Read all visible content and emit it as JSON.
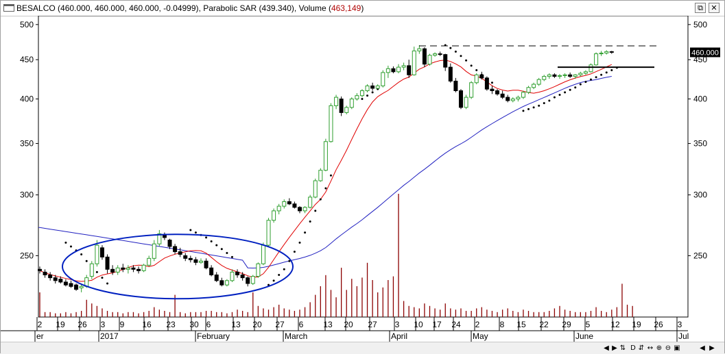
{
  "window": {
    "title_main": "BESALCO (460.000, 460.000, 460.000, -0.04999), Parabolic SAR (439.340), Volume (",
    "title_volume_value": "463,149",
    "title_close": ")",
    "restore_icon": "restore-window-icon",
    "close_icon": "close-window-icon"
  },
  "colors": {
    "up_candle": "#2e9e2e",
    "down_candle": "#000000",
    "sar": "#000000",
    "ma_short": "#e00000",
    "ma_long": "#2020c0",
    "volume": "#8b0000",
    "annotation": "#0020c0",
    "price_tag_bg": "#000000",
    "price_tag_text": "#ffffff"
  },
  "chart_data": {
    "type": "candlestick",
    "y_scale": "log",
    "ylim": [
      208,
      505
    ],
    "y_ticks": [
      250,
      300,
      350,
      400,
      450,
      500
    ],
    "last_price_label": "460.000",
    "x_day_labels": [
      "2",
      "19",
      "26",
      "3",
      "9",
      "16",
      "23",
      "30",
      "6",
      "13",
      "20",
      "27",
      "6",
      "13",
      "20",
      "27",
      "3",
      "10",
      "17",
      "24",
      "2",
      "8",
      "15",
      "22",
      "29",
      "5",
      "12",
      "19",
      "26",
      "3"
    ],
    "x_month_labels": [
      "er",
      "2017",
      "February",
      "March",
      "April",
      "May",
      "June",
      "Jul"
    ],
    "ohlc": [
      [
        240,
        242,
        237,
        239
      ],
      [
        238,
        240,
        234,
        236
      ],
      [
        236,
        238,
        232,
        234
      ],
      [
        234,
        236,
        230,
        232
      ],
      [
        233,
        235,
        230,
        231
      ],
      [
        231,
        233,
        228,
        229
      ],
      [
        230,
        232,
        227,
        228
      ],
      [
        229,
        230,
        225,
        226
      ],
      [
        227,
        230,
        224,
        228
      ],
      [
        228,
        236,
        227,
        234
      ],
      [
        235,
        246,
        233,
        244
      ],
      [
        244,
        262,
        242,
        258
      ],
      [
        256,
        258,
        247,
        249
      ],
      [
        249,
        251,
        237,
        240
      ],
      [
        240,
        243,
        236,
        238
      ],
      [
        238,
        243,
        236,
        241
      ],
      [
        241,
        244,
        238,
        240
      ],
      [
        240,
        243,
        237,
        241
      ],
      [
        241,
        243,
        238,
        240
      ],
      [
        240,
        242,
        237,
        239
      ],
      [
        239,
        244,
        238,
        243
      ],
      [
        243,
        250,
        242,
        248
      ],
      [
        248,
        262,
        246,
        259
      ],
      [
        259,
        270,
        257,
        267
      ],
      [
        266,
        268,
        262,
        264
      ],
      [
        262,
        263,
        255,
        257
      ],
      [
        257,
        259,
        251,
        253
      ],
      [
        253,
        256,
        249,
        251
      ],
      [
        250,
        252,
        246,
        248
      ],
      [
        248,
        250,
        245,
        247
      ],
      [
        247,
        249,
        243,
        245
      ],
      [
        245,
        248,
        244,
        246
      ],
      [
        246,
        248,
        240,
        241
      ],
      [
        241,
        243,
        235,
        236
      ],
      [
        236,
        238,
        231,
        232
      ],
      [
        232,
        234,
        228,
        229
      ],
      [
        229,
        233,
        228,
        232
      ],
      [
        232,
        240,
        231,
        238
      ],
      [
        238,
        240,
        234,
        236
      ],
      [
        236,
        238,
        232,
        234
      ],
      [
        234,
        235,
        228,
        230
      ],
      [
        230,
        236,
        229,
        235
      ],
      [
        235,
        245,
        234,
        244
      ],
      [
        244,
        260,
        243,
        258
      ],
      [
        258,
        280,
        257,
        278
      ],
      [
        278,
        288,
        276,
        286
      ],
      [
        286,
        292,
        283,
        290
      ],
      [
        290,
        296,
        288,
        294
      ],
      [
        294,
        297,
        291,
        292
      ],
      [
        292,
        294,
        288,
        289
      ],
      [
        289,
        290,
        284,
        286
      ],
      [
        286,
        290,
        284,
        289
      ],
      [
        289,
        300,
        288,
        298
      ],
      [
        298,
        315,
        297,
        313
      ],
      [
        313,
        325,
        312,
        323
      ],
      [
        323,
        355,
        322,
        352
      ],
      [
        352,
        395,
        351,
        392
      ],
      [
        392,
        405,
        388,
        402
      ],
      [
        400,
        403,
        380,
        384
      ],
      [
        384,
        392,
        382,
        390
      ],
      [
        390,
        402,
        388,
        400
      ],
      [
        400,
        407,
        398,
        404
      ],
      [
        404,
        412,
        402,
        410
      ],
      [
        410,
        418,
        408,
        416
      ],
      [
        416,
        420,
        410,
        413
      ],
      [
        413,
        418,
        412,
        416
      ],
      [
        416,
        436,
        414,
        433
      ],
      [
        433,
        442,
        426,
        438
      ],
      [
        438,
        441,
        432,
        434
      ],
      [
        434,
        444,
        432,
        440
      ],
      [
        440,
        446,
        436,
        442
      ],
      [
        442,
        450,
        426,
        430
      ],
      [
        430,
        468,
        429,
        462
      ],
      [
        462,
        470,
        458,
        465
      ],
      [
        465,
        467,
        440,
        444
      ],
      [
        444,
        458,
        442,
        456
      ],
      [
        456,
        460,
        454,
        458
      ],
      [
        458,
        461,
        455,
        457
      ],
      [
        457,
        458,
        435,
        440
      ],
      [
        440,
        445,
        420,
        422
      ],
      [
        422,
        426,
        408,
        410
      ],
      [
        410,
        412,
        388,
        390
      ],
      [
        390,
        405,
        388,
        402
      ],
      [
        402,
        422,
        400,
        420
      ],
      [
        420,
        432,
        418,
        430
      ],
      [
        430,
        434,
        424,
        426
      ],
      [
        426,
        428,
        410,
        412
      ],
      [
        412,
        416,
        406,
        410
      ],
      [
        410,
        412,
        404,
        406
      ],
      [
        406,
        410,
        400,
        402
      ],
      [
        402,
        405,
        396,
        398
      ],
      [
        398,
        402,
        396,
        400
      ],
      [
        400,
        404,
        397,
        402
      ],
      [
        402,
        410,
        400,
        408
      ],
      [
        408,
        416,
        406,
        414
      ],
      [
        414,
        420,
        412,
        418
      ],
      [
        418,
        426,
        416,
        424
      ],
      [
        424,
        430,
        422,
        428
      ],
      [
        428,
        432,
        425,
        430
      ],
      [
        430,
        432,
        426,
        428
      ],
      [
        428,
        431,
        425,
        429
      ],
      [
        429,
        432,
        426,
        430
      ],
      [
        430,
        433,
        426,
        428
      ],
      [
        428,
        431,
        425,
        430
      ],
      [
        430,
        434,
        428,
        432
      ],
      [
        432,
        436,
        430,
        434
      ],
      [
        434,
        445,
        433,
        443
      ],
      [
        443,
        460,
        442,
        458
      ],
      [
        458,
        462,
        455,
        459
      ],
      [
        459,
        463,
        457,
        461
      ],
      [
        461,
        462,
        458,
        460
      ]
    ],
    "volume": [
      0.2,
      0.04,
      0.04,
      0.03,
      0.03,
      0.04,
      0.03,
      0.04,
      0.05,
      0.14,
      0.11,
      0.09,
      0.07,
      0.05,
      0.04,
      0.04,
      0.03,
      0.04,
      0.04,
      0.03,
      0.04,
      0.05,
      0.08,
      0.06,
      0.05,
      0.04,
      0.18,
      0.04,
      0.03,
      0.04,
      0.04,
      0.04,
      0.05,
      0.05,
      0.04,
      0.04,
      0.03,
      0.04,
      0.06,
      0.05,
      0.04,
      0.2,
      0.09,
      0.07,
      0.06,
      0.08,
      0.1,
      0.07,
      0.06,
      0.05,
      0.06,
      0.08,
      0.12,
      0.18,
      0.25,
      0.34,
      0.22,
      0.16,
      0.4,
      0.22,
      0.31,
      0.25,
      0.32,
      0.44,
      0.3,
      0.2,
      0.24,
      0.3,
      0.33,
      1.0,
      0.13,
      0.09,
      0.08,
      0.07,
      0.11,
      0.09,
      0.07,
      0.06,
      0.11,
      0.07,
      0.06,
      0.07,
      0.05,
      0.05,
      0.07,
      0.08,
      0.06,
      0.05,
      0.04,
      0.06,
      0.07,
      0.05,
      0.04,
      0.06,
      0.05,
      0.04,
      0.04,
      0.04,
      0.05,
      0.07,
      0.09,
      0.06,
      0.05,
      0.04,
      0.04,
      0.04,
      0.05,
      0.08,
      0.05,
      0.04,
      0.06,
      0.08,
      0.27,
      0.1,
      0.09
    ],
    "sar": [
      null,
      null,
      null,
      null,
      null,
      260,
      257,
      254,
      251,
      246,
      242,
      238,
      234,
      230,
      null,
      null,
      null,
      null,
      null,
      null,
      null,
      null,
      null,
      null,
      null,
      null,
      null,
      null,
      null,
      270,
      268,
      266,
      264,
      261,
      258,
      255,
      252,
      249,
      null,
      null,
      null,
      null,
      null,
      null,
      229,
      232,
      236,
      240,
      246,
      253,
      260,
      268,
      277,
      286,
      296,
      306,
      318,
      null,
      null,
      null,
      null,
      null,
      400,
      404,
      408,
      412,
      null,
      null,
      null,
      null,
      null,
      null,
      null,
      null,
      null,
      null,
      null,
      null,
      470,
      466,
      461,
      455,
      449,
      442,
      436,
      430,
      425,
      420,
      null,
      null,
      null,
      null,
      null,
      386,
      388,
      390,
      392,
      395,
      398,
      402,
      405,
      408,
      411,
      414,
      418,
      421,
      424,
      427,
      430,
      433,
      436,
      439.34
    ]
  },
  "annotations": {
    "lines": [
      "dashed-resistance-line",
      "horizontal-support-line"
    ],
    "shape": "ellipse-consolidation-zone"
  },
  "statusbar": {
    "buttons": [
      "scroll-left",
      "scroll-right",
      "S",
      "D",
      "scroll-up-down",
      "scroll-horizontal",
      "zoom-in",
      "zoom-out",
      "zoom-rect",
      "prev",
      "next"
    ]
  }
}
